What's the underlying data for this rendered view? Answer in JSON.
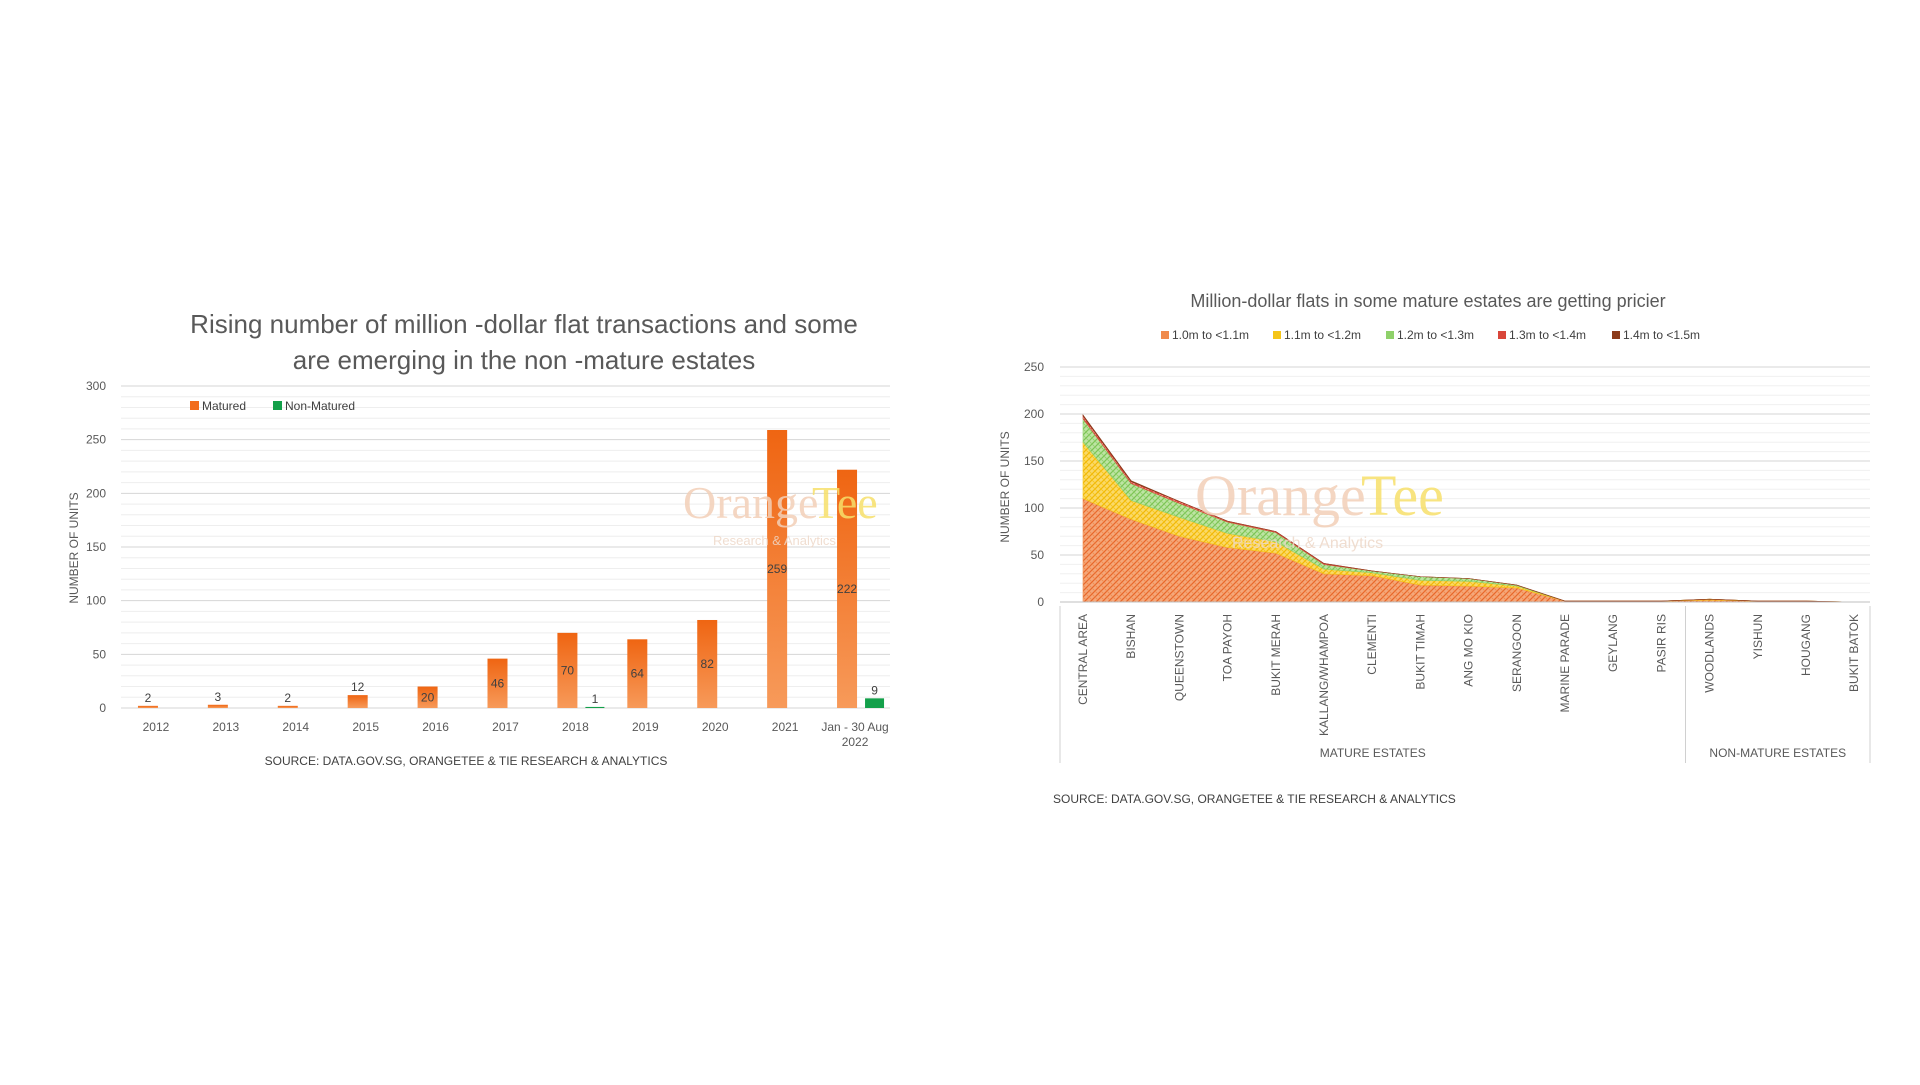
{
  "chart_data": [
    {
      "type": "bar",
      "title_lines": [
        "Rising number of million -dollar flat transactions and some",
        "are emerging in the non -mature estates"
      ],
      "ylabel": "NUMBER OF UNITS",
      "ylim": [
        0,
        300
      ],
      "yticks": [
        0,
        50,
        100,
        150,
        200,
        250,
        300
      ],
      "grid": true,
      "legend_placement": "top-left",
      "categories": [
        "2012",
        "2013",
        "2014",
        "2015",
        "2016",
        "2017",
        "2018",
        "2019",
        "2020",
        "2021",
        "Jan - 30 Aug 2022"
      ],
      "category_lines": [
        [
          "2012"
        ],
        [
          "2013"
        ],
        [
          "2014"
        ],
        [
          "2015"
        ],
        [
          "2016"
        ],
        [
          "2017"
        ],
        [
          "2018"
        ],
        [
          "2019"
        ],
        [
          "2020"
        ],
        [
          "2021"
        ],
        [
          "Jan - 30 Aug",
          "2022"
        ]
      ],
      "series": [
        {
          "name": "Matured",
          "color": "#f26c1c",
          "values": [
            2,
            3,
            2,
            12,
            20,
            46,
            70,
            64,
            82,
            259,
            222
          ]
        },
        {
          "name": "Non-Matured",
          "color": "#13a04a",
          "values": [
            0,
            0,
            0,
            0,
            0,
            0,
            1,
            0,
            0,
            0,
            9
          ]
        }
      ],
      "source": "SOURCE: DATA.GOV.SG, ORANGETEE & TIE RESEARCH & ANALYTICS",
      "watermark": {
        "part1": "Orange",
        "part2": "Tee",
        "sub": "Research & Analytics"
      }
    },
    {
      "type": "area",
      "stacked": true,
      "title": "Million-dollar flats in some mature estates are getting pricier",
      "ylabel": "NUMBER OF UNITS",
      "ylim": [
        0,
        250
      ],
      "yticks": [
        0,
        50,
        100,
        150,
        200,
        250
      ],
      "grid": true,
      "legend_placement": "top",
      "categories": [
        "CENTRAL AREA",
        "BISHAN",
        "QUEENSTOWN",
        "TOA PAYOH",
        "BUKIT MERAH",
        "KALLANG/WHAMPOA",
        "CLEMENTI",
        "BUKIT TIMAH",
        "ANG MO KIO",
        "SERANGOON",
        "MARINE PARADE",
        "GEYLANG",
        "PASIR RIS",
        "WOODLANDS",
        "YISHUN",
        "HOUGANG",
        "BUKIT BATOK"
      ],
      "series": [
        {
          "name": "1.0m to <1.1m",
          "color": "#f08a4b",
          "values": [
            110,
            88,
            70,
            58,
            52,
            30,
            28,
            18,
            17,
            15,
            1,
            1,
            1,
            2,
            1,
            1,
            0
          ]
        },
        {
          "name": "1.1m to <1.2m",
          "color": "#f5c518",
          "values": [
            60,
            20,
            20,
            15,
            12,
            5,
            3,
            5,
            5,
            2,
            0,
            0,
            0,
            1,
            0,
            0,
            0
          ]
        },
        {
          "name": "1.2m to <1.3m",
          "color": "#8fd16a",
          "values": [
            25,
            18,
            15,
            12,
            10,
            5,
            2,
            4,
            3,
            1,
            0,
            0,
            0,
            0,
            0,
            0,
            0
          ]
        },
        {
          "name": "1.3m to <1.4m",
          "color": "#d9463a",
          "values": [
            3,
            2,
            2,
            1,
            1,
            1,
            0,
            0,
            0,
            0,
            0,
            0,
            0,
            0,
            0,
            0,
            0
          ]
        },
        {
          "name": "1.4m to <1.5m",
          "color": "#8b3a1a",
          "values": [
            1,
            1,
            0,
            0,
            0,
            0,
            0,
            0,
            0,
            0,
            0,
            0,
            0,
            0,
            0,
            0,
            0
          ]
        }
      ],
      "group_labels": [
        {
          "label": "MATURE ESTATES",
          "categories": 13
        },
        {
          "label": "NON-MATURE ESTATES",
          "categories": 4
        }
      ],
      "source": "SOURCE: DATA.GOV.SG, ORANGETEE & TIE RESEARCH & ANALYTICS",
      "watermark": {
        "part1": "Orange",
        "part2": "Tee",
        "sub": "Research & Analytics"
      }
    }
  ]
}
